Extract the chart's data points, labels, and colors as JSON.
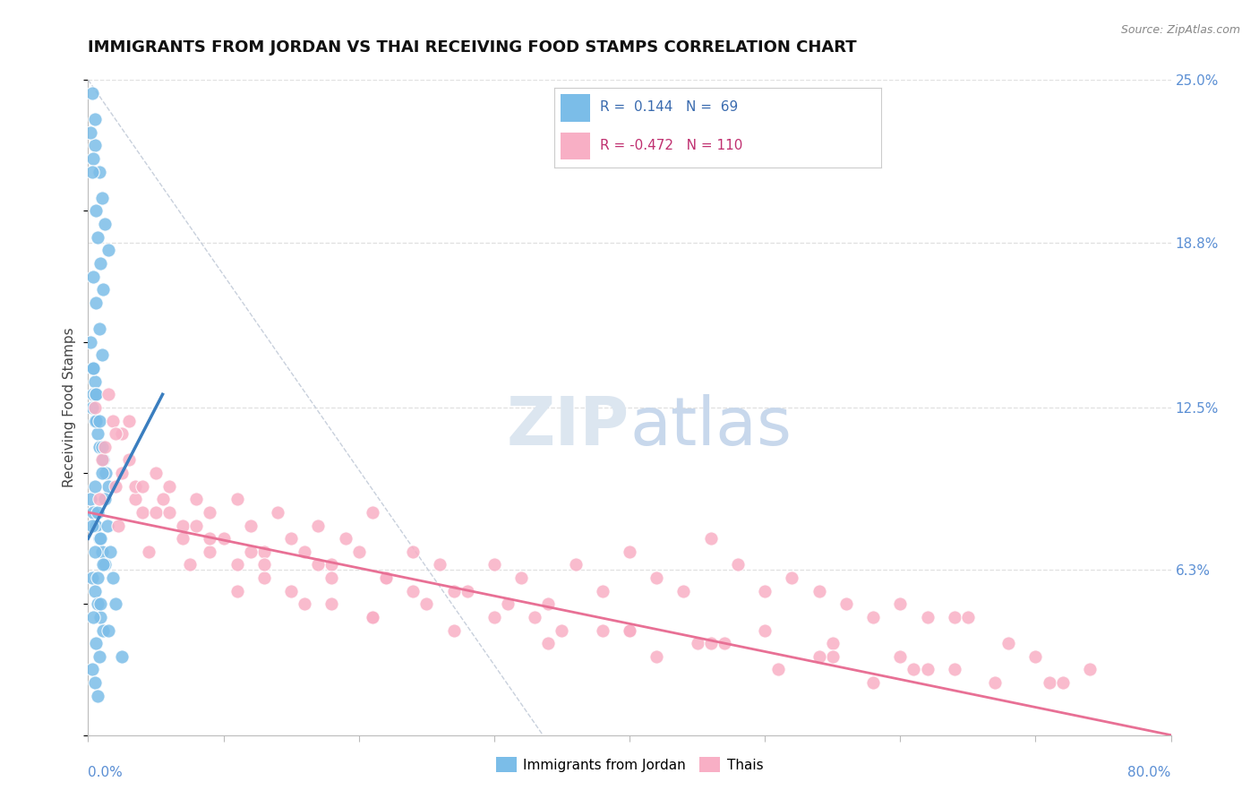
{
  "title": "IMMIGRANTS FROM JORDAN VS THAI RECEIVING FOOD STAMPS CORRELATION CHART",
  "source": "Source: ZipAtlas.com",
  "ylabel": "Receiving Food Stamps",
  "xmin": 0.0,
  "xmax": 80.0,
  "ymin": 0.0,
  "ymax": 25.0,
  "jordan_R": 0.144,
  "jordan_N": 69,
  "thai_R": -0.472,
  "thai_N": 110,
  "jordan_color": "#7bbde8",
  "thai_color": "#f8afc5",
  "jordan_line_color": "#3a7ebf",
  "thai_line_color": "#e87095",
  "diagonal_color": "#c8d0dc",
  "watermark_zip": "ZIP",
  "watermark_atlas": "atlas",
  "background_color": "#ffffff",
  "legend_box_color": "#ffffff",
  "legend_border_color": "#cccccc",
  "right_label_color": "#5b8fd4",
  "grid_color": "#e0e0e0",
  "jordan_scatter_x": [
    0.3,
    0.5,
    0.5,
    0.8,
    1.0,
    1.2,
    1.5,
    0.4,
    0.6,
    0.9,
    1.1,
    0.2,
    0.3,
    0.7,
    0.4,
    0.6,
    0.8,
    1.0,
    0.5,
    0.3,
    0.5,
    0.7,
    0.9,
    1.1,
    1.3,
    1.5,
    0.2,
    0.4,
    0.6,
    0.8,
    1.0,
    1.2,
    0.3,
    0.5,
    0.7,
    0.9,
    1.1,
    0.4,
    0.6,
    0.8,
    1.0,
    1.2,
    0.3,
    0.5,
    0.7,
    0.9,
    0.4,
    0.6,
    0.8,
    1.0,
    0.5,
    0.7,
    0.9,
    1.1,
    0.4,
    0.6,
    0.8,
    0.3,
    0.5,
    0.7,
    0.2,
    0.4,
    0.6,
    1.4,
    1.6,
    1.8,
    2.0,
    1.5,
    2.5
  ],
  "jordan_scatter_y": [
    24.5,
    23.5,
    22.5,
    21.5,
    20.5,
    19.5,
    18.5,
    22.0,
    20.0,
    18.0,
    17.0,
    23.0,
    21.5,
    19.0,
    17.5,
    16.5,
    15.5,
    14.5,
    13.5,
    12.5,
    12.0,
    11.5,
    11.0,
    10.5,
    10.0,
    9.5,
    9.0,
    8.5,
    8.0,
    7.5,
    7.0,
    6.5,
    6.0,
    5.5,
    5.0,
    4.5,
    4.0,
    13.0,
    12.0,
    11.0,
    10.0,
    9.0,
    8.0,
    7.0,
    6.0,
    5.0,
    14.0,
    13.0,
    12.0,
    11.0,
    9.5,
    8.5,
    7.5,
    6.5,
    4.5,
    3.5,
    3.0,
    2.5,
    2.0,
    1.5,
    15.0,
    14.0,
    13.0,
    8.0,
    7.0,
    6.0,
    5.0,
    4.0,
    3.0
  ],
  "thai_scatter_x": [
    0.5,
    1.0,
    1.5,
    2.0,
    2.5,
    3.0,
    3.5,
    4.0,
    5.0,
    6.0,
    7.0,
    8.0,
    9.0,
    10.0,
    11.0,
    12.0,
    13.0,
    14.0,
    15.0,
    16.0,
    17.0,
    18.0,
    19.0,
    20.0,
    21.0,
    22.0,
    24.0,
    26.0,
    28.0,
    30.0,
    32.0,
    34.0,
    36.0,
    38.0,
    40.0,
    42.0,
    44.0,
    46.0,
    48.0,
    50.0,
    52.0,
    54.0,
    56.0,
    58.0,
    60.0,
    62.0,
    64.0,
    65.0,
    68.0,
    70.0,
    1.2,
    2.5,
    3.5,
    5.0,
    7.0,
    9.0,
    11.0,
    13.0,
    15.0,
    18.0,
    21.0,
    25.0,
    30.0,
    35.0,
    40.0,
    45.0,
    50.0,
    55.0,
    60.0,
    1.8,
    3.0,
    5.5,
    8.0,
    12.0,
    17.0,
    22.0,
    27.0,
    33.0,
    40.0,
    47.0,
    55.0,
    62.0,
    2.0,
    4.0,
    6.0,
    9.0,
    13.0,
    18.0,
    24.0,
    31.0,
    38.0,
    46.0,
    54.0,
    61.0,
    67.0,
    0.8,
    2.2,
    4.5,
    7.5,
    11.0,
    16.0,
    21.0,
    27.0,
    34.0,
    42.0,
    51.0,
    58.0,
    64.0,
    71.0,
    72.0,
    74.0
  ],
  "thai_scatter_y": [
    12.5,
    10.5,
    13.0,
    9.5,
    11.5,
    12.0,
    9.0,
    8.5,
    10.0,
    9.5,
    8.0,
    9.0,
    8.5,
    7.5,
    9.0,
    8.0,
    7.0,
    8.5,
    7.5,
    7.0,
    8.0,
    6.5,
    7.5,
    7.0,
    8.5,
    6.0,
    7.0,
    6.5,
    5.5,
    6.5,
    6.0,
    5.0,
    6.5,
    5.5,
    7.0,
    6.0,
    5.5,
    7.5,
    6.5,
    5.5,
    6.0,
    5.5,
    5.0,
    4.5,
    5.0,
    4.5,
    4.5,
    4.5,
    3.5,
    3.0,
    11.0,
    10.0,
    9.5,
    8.5,
    7.5,
    7.0,
    6.5,
    6.0,
    5.5,
    5.0,
    4.5,
    5.0,
    4.5,
    4.0,
    4.0,
    3.5,
    4.0,
    3.5,
    3.0,
    12.0,
    10.5,
    9.0,
    8.0,
    7.0,
    6.5,
    6.0,
    5.5,
    4.5,
    4.0,
    3.5,
    3.0,
    2.5,
    11.5,
    9.5,
    8.5,
    7.5,
    6.5,
    6.0,
    5.5,
    5.0,
    4.0,
    3.5,
    3.0,
    2.5,
    2.0,
    9.0,
    8.0,
    7.0,
    6.5,
    5.5,
    5.0,
    4.5,
    4.0,
    3.5,
    3.0,
    2.5,
    2.0,
    2.5,
    2.0,
    2.0,
    2.5
  ]
}
